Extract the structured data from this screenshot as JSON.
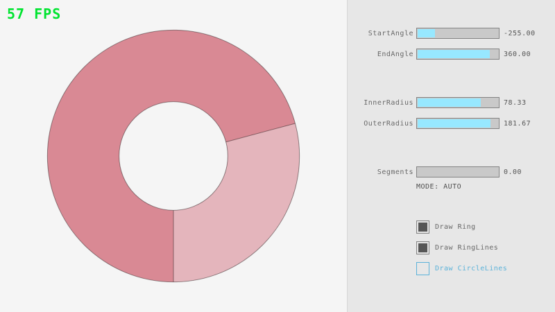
{
  "colors": {
    "fps_green": "#00E430",
    "accent_fill": "#97E8FF",
    "focused_blue": "#5BB2D9",
    "ring_dark": "#D98994",
    "ring_light": "#E4B5BC",
    "ring_line": "rgba(0,0,0,0.4)"
  },
  "fps": {
    "label": "57 FPS"
  },
  "ring": {
    "inner_radius": 78.33,
    "outer_radius": 181.67,
    "light_sector": {
      "from_deg": 0,
      "to_deg": 105
    }
  },
  "panel": {
    "sliders": [
      {
        "label": "StartAngle",
        "value": "-255.00",
        "fill_pct": 21.67
      },
      {
        "label": "EndAngle",
        "value": "360.00",
        "fill_pct": 90.0
      },
      {
        "label": "InnerRadius",
        "value": "78.33",
        "fill_pct": 78.33
      },
      {
        "label": "OuterRadius",
        "value": "181.67",
        "fill_pct": 90.83
      },
      {
        "label": "Segments",
        "value": "0.00",
        "fill_pct": 0
      }
    ],
    "mode_text": "MODE: AUTO",
    "checkboxes": [
      {
        "label": "Draw Ring",
        "checked": true,
        "state": "normal"
      },
      {
        "label": "Draw RingLines",
        "checked": true,
        "state": "normal"
      },
      {
        "label": "Draw CircleLines",
        "checked": false,
        "state": "focused"
      }
    ]
  }
}
